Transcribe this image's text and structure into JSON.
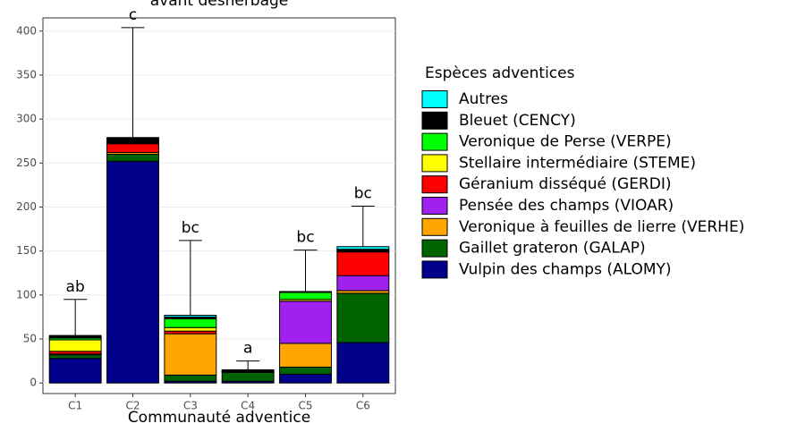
{
  "chart_data": {
    "type": "bar",
    "stacked": true,
    "title": "avant désherbage",
    "x_label": "Communauté adventice",
    "legend_title": "Espèces adventices",
    "categories": [
      "C1",
      "C2",
      "C3",
      "C4",
      "C5",
      "C6"
    ],
    "series": [
      {
        "name": "Vulpin des champs (ALOMY)",
        "color": "#00008b",
        "values": [
          28,
          252,
          2,
          2,
          10,
          46
        ]
      },
      {
        "name": "Gaillet grateron (GALAP)",
        "color": "#006400",
        "values": [
          4,
          8,
          7,
          10,
          8,
          56
        ]
      },
      {
        "name": "Veronique à feuilles de lierre (VERHE)",
        "color": "#ffa500",
        "values": [
          1,
          2,
          47,
          1,
          27,
          3
        ]
      },
      {
        "name": "Pensée des champs (VIOAR)",
        "color": "#a020f0",
        "values": [
          0,
          0,
          0,
          0,
          48,
          17
        ]
      },
      {
        "name": "Géranium disséqué (GERDI)",
        "color": "#ff0000",
        "values": [
          3,
          10,
          3,
          0,
          0,
          27
        ]
      },
      {
        "name": "Stellaire intermédiaire (STEME)",
        "color": "#ffff00",
        "values": [
          13,
          1,
          4,
          0,
          2,
          1
        ]
      },
      {
        "name": "Veronique de Perse (VERPE)",
        "color": "#00ff00",
        "values": [
          2,
          1,
          10,
          1,
          8,
          1
        ]
      },
      {
        "name": "Bleuet (CENCY)",
        "color": "#000000",
        "values": [
          3,
          5,
          2,
          1,
          1,
          1
        ]
      },
      {
        "name": "Autres",
        "color": "#00ffff",
        "values": [
          0,
          0,
          2,
          0,
          0,
          3
        ]
      }
    ],
    "errors": [
      41,
      125,
      85,
      10,
      47,
      46
    ],
    "annotations": [
      "ab",
      "c",
      "bc",
      "a",
      "bc",
      "bc"
    ],
    "ylim": [
      -12,
      415
    ],
    "yticks": [
      0,
      50,
      100,
      150,
      200,
      250,
      300,
      350,
      400
    ],
    "grid": true
  }
}
